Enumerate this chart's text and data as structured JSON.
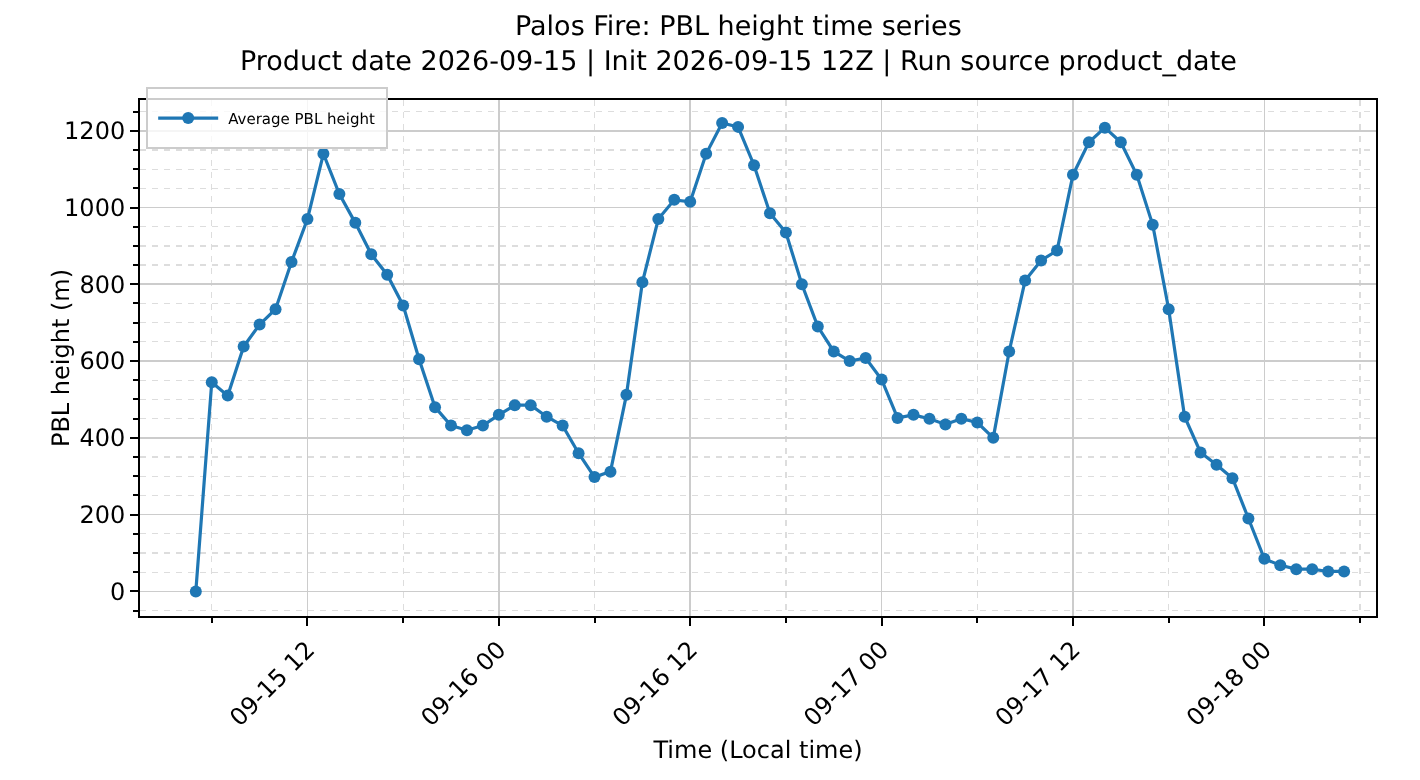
{
  "chart_data": {
    "type": "line",
    "title": "Palos Fire: PBL height time series\nProduct date 2026-09-15 | Init 2026-09-15 12Z | Run source product_date",
    "xlabel": "Time (Local time)",
    "ylabel": "PBL height (m)",
    "x": [
      "2026-09-15T05:00",
      "2026-09-15T06:00",
      "2026-09-15T07:00",
      "2026-09-15T08:00",
      "2026-09-15T09:00",
      "2026-09-15T10:00",
      "2026-09-15T11:00",
      "2026-09-15T12:00",
      "2026-09-15T13:00",
      "2026-09-15T14:00",
      "2026-09-15T15:00",
      "2026-09-15T16:00",
      "2026-09-15T17:00",
      "2026-09-15T18:00",
      "2026-09-15T19:00",
      "2026-09-15T20:00",
      "2026-09-15T21:00",
      "2026-09-15T22:00",
      "2026-09-15T23:00",
      "2026-09-16T00:00",
      "2026-09-16T01:00",
      "2026-09-16T02:00",
      "2026-09-16T03:00",
      "2026-09-16T04:00",
      "2026-09-16T05:00",
      "2026-09-16T06:00",
      "2026-09-16T07:00",
      "2026-09-16T08:00",
      "2026-09-16T09:00",
      "2026-09-16T10:00",
      "2026-09-16T11:00",
      "2026-09-16T12:00",
      "2026-09-16T13:00",
      "2026-09-16T14:00",
      "2026-09-16T15:00",
      "2026-09-16T16:00",
      "2026-09-16T17:00",
      "2026-09-16T18:00",
      "2026-09-16T19:00",
      "2026-09-16T20:00",
      "2026-09-16T21:00",
      "2026-09-16T22:00",
      "2026-09-16T23:00",
      "2026-09-17T00:00",
      "2026-09-17T01:00",
      "2026-09-17T02:00",
      "2026-09-17T03:00",
      "2026-09-17T04:00",
      "2026-09-17T05:00",
      "2026-09-17T06:00",
      "2026-09-17T07:00",
      "2026-09-17T08:00",
      "2026-09-17T09:00",
      "2026-09-17T10:00",
      "2026-09-17T11:00",
      "2026-09-17T12:00",
      "2026-09-17T13:00",
      "2026-09-17T14:00",
      "2026-09-17T15:00",
      "2026-09-17T16:00",
      "2026-09-17T17:00",
      "2026-09-17T18:00",
      "2026-09-17T19:00",
      "2026-09-17T20:00",
      "2026-09-17T21:00",
      "2026-09-17T22:00",
      "2026-09-17T23:00",
      "2026-09-18T00:00",
      "2026-09-18T01:00",
      "2026-09-18T02:00",
      "2026-09-18T03:00",
      "2026-09-18T04:00",
      "2026-09-18T05:00"
    ],
    "series": [
      {
        "name": "Average PBL height",
        "color": "#1f77b4",
        "values": [
          0,
          545,
          510,
          638,
          695,
          735,
          858,
          970,
          1140,
          1035,
          960,
          878,
          825,
          745,
          605,
          480,
          432,
          420,
          432,
          460,
          485,
          485,
          455,
          432,
          360,
          298,
          312,
          512,
          805,
          970,
          1020,
          1015,
          1140,
          1220,
          1210,
          1110,
          985,
          935,
          800,
          690,
          625,
          600,
          608,
          552,
          452,
          460,
          450,
          435,
          450,
          440,
          400,
          625,
          810,
          862,
          888,
          1085,
          1170,
          1208,
          1170,
          1085,
          955,
          735,
          455,
          362,
          330,
          295,
          190,
          85,
          68,
          58,
          58,
          52,
          52
        ]
      }
    ],
    "xlim": [
      "2026-09-15T01:30",
      "2026-09-18T07:00"
    ],
    "xticks": [
      {
        "value": "2026-09-15T06:00",
        "label": null
      },
      {
        "value": "2026-09-15T12:00",
        "label": "09-15 12"
      },
      {
        "value": "2026-09-15T18:00",
        "label": null
      },
      {
        "value": "2026-09-16T00:00",
        "label": "09-16 00"
      },
      {
        "value": "2026-09-16T06:00",
        "label": null
      },
      {
        "value": "2026-09-16T12:00",
        "label": "09-16 12"
      },
      {
        "value": "2026-09-16T18:00",
        "label": null
      },
      {
        "value": "2026-09-17T00:00",
        "label": "09-17 00"
      },
      {
        "value": "2026-09-17T06:00",
        "label": null
      },
      {
        "value": "2026-09-17T12:00",
        "label": "09-17 12"
      },
      {
        "value": "2026-09-17T18:00",
        "label": null
      },
      {
        "value": "2026-09-18T00:00",
        "label": "09-18 00"
      },
      {
        "value": "2026-09-18T06:00",
        "label": null
      }
    ],
    "ylim": [
      -64,
      1280
    ],
    "yticks": [
      {
        "value": -50,
        "label": null
      },
      0,
      {
        "value": 50,
        "label": null
      },
      {
        "value": 100,
        "label": null
      },
      {
        "value": 150,
        "label": null
      },
      200,
      {
        "value": 250,
        "label": null
      },
      {
        "value": 300,
        "label": null
      },
      {
        "value": 350,
        "label": null
      },
      400,
      {
        "value": 450,
        "label": null
      },
      {
        "value": 500,
        "label": null
      },
      {
        "value": 550,
        "label": null
      },
      600,
      {
        "value": 650,
        "label": null
      },
      {
        "value": 700,
        "label": null
      },
      {
        "value": 750,
        "label": null
      },
      800,
      {
        "value": 850,
        "label": null
      },
      {
        "value": 900,
        "label": null
      },
      {
        "value": 950,
        "label": null
      },
      1000,
      {
        "value": 1050,
        "label": null
      },
      {
        "value": 1100,
        "label": null
      },
      {
        "value": 1150,
        "label": null
      },
      1200,
      {
        "value": 1250,
        "label": null
      }
    ],
    "grid": true,
    "legend": "top left",
    "marker": "circle",
    "line_style": "solid"
  }
}
